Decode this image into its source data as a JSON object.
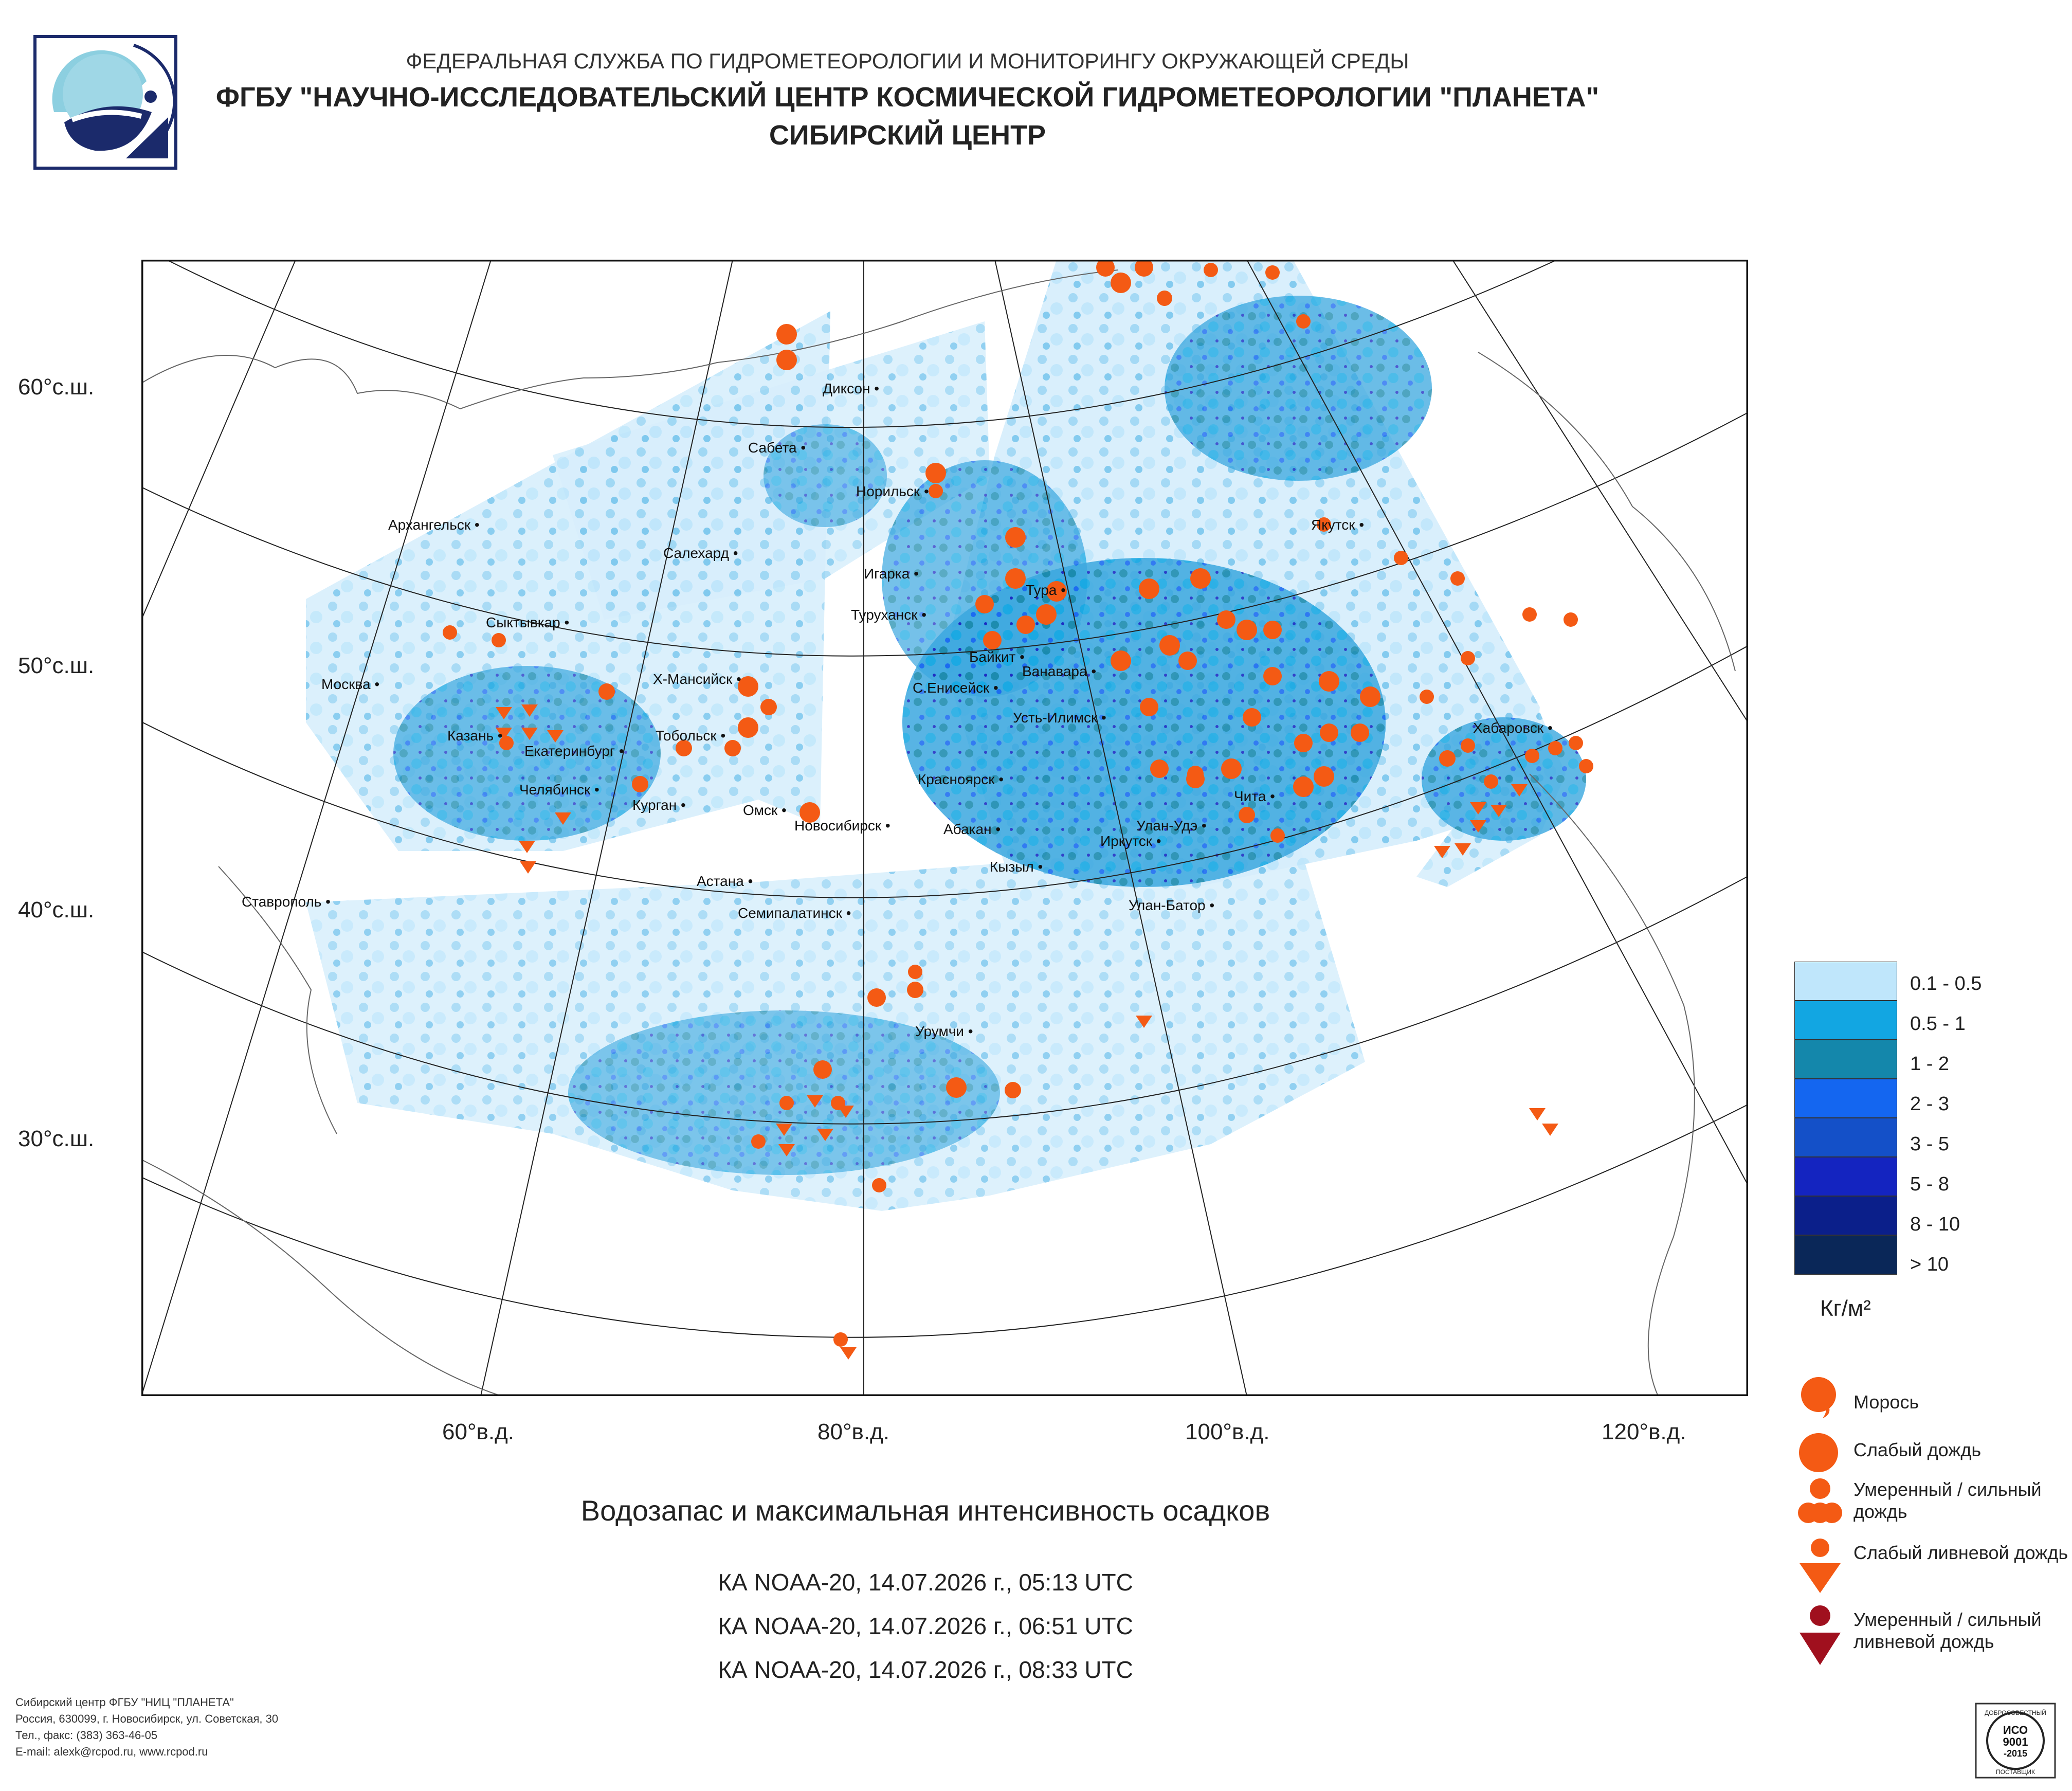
{
  "header": {
    "line1": "ФЕДЕРАЛЬНАЯ СЛУЖБА ПО ГИДРОМЕТЕОРОЛОГИИ И МОНИТОРИНГУ ОКРУЖАЮЩЕЙ СРЕДЫ",
    "line2": "ФГБУ \"НАУЧНО-ИССЛЕДОВАТЕЛЬСКИЙ ЦЕНТР КОСМИЧЕСКОЙ ГИДРОМЕТЕОРОЛОГИИ \"ПЛАНЕТА\"",
    "line3": "СИБИРСКИЙ ЦЕНТР"
  },
  "axes": {
    "lat_labels": [
      "60°с.ш.",
      "50°с.ш.",
      "40°с.ш.",
      "30°с.ш."
    ],
    "lon_labels": [
      "60°в.д.",
      "80°в.д.",
      "100°в.д.",
      "120°в.д."
    ]
  },
  "cities": [
    "Диксон",
    "Сабета",
    "Норильск",
    "Архангельск",
    "Салехард",
    "Игарка",
    "Туруханск",
    "Якутск",
    "Тура",
    "Сыктывкар",
    "Байкит",
    "Ванавара",
    "Москва",
    "Х-Мансийск",
    "С.Енисейск",
    "Усть-Илимск",
    "Казань",
    "Екатеринбург",
    "Тобольск",
    "Хабаровск",
    "Челябинск",
    "Курган",
    "Красноярск",
    "Омск",
    "Новосибирск",
    "Абакан",
    "Чита",
    "Улан-Удэ",
    "Иркутск",
    "Кызыл",
    "Астана",
    "Ставрополь",
    "Семипалатинск",
    "Улан-Батор",
    "Урумчи"
  ],
  "legend": {
    "classes": [
      {
        "label": "0.1 - 0.5",
        "color": "#bfe6fb"
      },
      {
        "label": "0.5 - 1",
        "color": "#12a6e2"
      },
      {
        "label": "1 - 2",
        "color": "#1487ab"
      },
      {
        "label": "2 - 3",
        "color": "#1466f0"
      },
      {
        "label": "3 - 5",
        "color": "#1450c8"
      },
      {
        "label": "5 - 8",
        "color": "#1424c0"
      },
      {
        "label": "8 - 10",
        "color": "#0b1f8a"
      },
      {
        "label": "> 10",
        "color": "#0a2758"
      }
    ],
    "unit": "Кг/м²",
    "symbols": [
      {
        "label": "Морось",
        "color": "#f45a14"
      },
      {
        "label": "Слабый дождь",
        "color": "#f45a14"
      },
      {
        "label": "Умеренный / сильный дождь",
        "color": "#f45a14"
      },
      {
        "label": "Слабый ливневой дождь",
        "color": "#f45a14"
      },
      {
        "label": "Умеренный / сильный ливневой дождь",
        "color": "#a0101e"
      }
    ]
  },
  "title": "Водозапас и максимальная интенсивность осадков",
  "passes": [
    "КА NOAA-20, 14.07.2026 г., 05:13 UTC",
    "КА NOAA-20, 14.07.2026 г., 06:51 UTC",
    "КА NOAA-20, 14.07.2026 г., 08:33 UTC"
  ],
  "footer": [
    "Сибирский центр ФГБУ \"НИЦ \"ПЛАНЕТА\"",
    "Россия, 630099, г. Новосибирск, ул. Советская, 30",
    "Тел., факс: (383) 363-46-05",
    "E-mail: alexk@rcpod.ru, www.rcpod.ru"
  ],
  "iso_badge": {
    "top": "ДОБРОСОВЕСТНЫЙ",
    "l1": "ИСО",
    "l2": "9001",
    "l3": "-2015",
    "bottom": "ПОСТАВЩИК"
  }
}
